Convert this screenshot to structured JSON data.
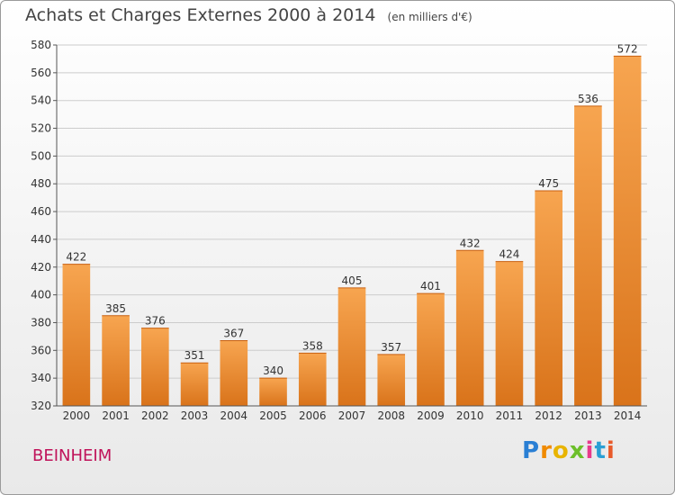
{
  "title": "Achats et Charges Externes 2000 à 2014",
  "unit_label": "(en milliers d'€)",
  "city": "BEINHEIM",
  "logo": {
    "letters": [
      "P",
      "r",
      "o",
      "x",
      "i",
      "t",
      "i"
    ],
    "colors": [
      "#2a7fd4",
      "#f08a00",
      "#e8b400",
      "#6cbf2a",
      "#e83a8c",
      "#2a9fd4",
      "#e85a2a"
    ]
  },
  "colors": {
    "bar_light": "#f7a550",
    "bar_dark": "#d9731a",
    "grid": "#cccccc"
  },
  "chart_data": {
    "type": "bar",
    "title": "Achats et Charges Externes 2000 à 2014",
    "categories": [
      "2000",
      "2001",
      "2002",
      "2003",
      "2004",
      "2005",
      "2006",
      "2007",
      "2008",
      "2009",
      "2010",
      "2011",
      "2012",
      "2013",
      "2014"
    ],
    "values": [
      422,
      385,
      376,
      351,
      367,
      340,
      358,
      405,
      357,
      401,
      432,
      424,
      475,
      536,
      572
    ],
    "ylim": [
      320,
      580
    ],
    "yticks": [
      320,
      340,
      360,
      380,
      400,
      420,
      440,
      460,
      480,
      500,
      520,
      540,
      560,
      580
    ],
    "grid": true
  }
}
